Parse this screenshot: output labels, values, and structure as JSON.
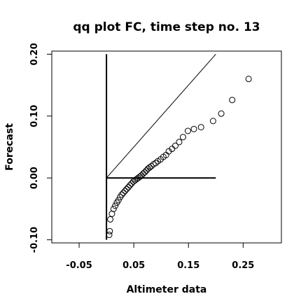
{
  "chart_data": {
    "type": "scatter",
    "title": "qq plot FC, time step no. 13",
    "xlabel": "Altimeter data",
    "ylabel": "Forecast",
    "xlim": [
      -0.1,
      0.32
    ],
    "ylim": [
      -0.105,
      0.205
    ],
    "x_ticks": [
      {
        "value": -0.05,
        "label": "-0.05"
      },
      {
        "value": 0.05,
        "label": "0.05"
      },
      {
        "value": 0.15,
        "label": "0.15"
      },
      {
        "value": 0.25,
        "label": "0.25"
      }
    ],
    "y_ticks": [
      {
        "value": -0.1,
        "label": "-0.10"
      },
      {
        "value": 0.0,
        "label": "0.00"
      },
      {
        "value": 0.1,
        "label": "0.10"
      },
      {
        "value": 0.2,
        "label": "0.20"
      }
    ],
    "reference_lines": [
      {
        "name": "identity-line",
        "x": [
          0,
          0.2
        ],
        "y": [
          0,
          0.2
        ]
      },
      {
        "name": "vertical-axis-line",
        "x": [
          0,
          0
        ],
        "y": [
          -0.1,
          0.2
        ]
      },
      {
        "name": "horizontal-axis-line",
        "x": [
          0,
          0.2
        ],
        "y": [
          0,
          0
        ]
      }
    ],
    "grid": false,
    "points": {
      "x": [
        0.005,
        0.006,
        0.007,
        0.01,
        0.013,
        0.016,
        0.019,
        0.022,
        0.025,
        0.028,
        0.031,
        0.034,
        0.037,
        0.04,
        0.043,
        0.046,
        0.049,
        0.052,
        0.055,
        0.058,
        0.061,
        0.064,
        0.067,
        0.07,
        0.073,
        0.076,
        0.079,
        0.082,
        0.086,
        0.09,
        0.094,
        0.099,
        0.104,
        0.109,
        0.114,
        0.12,
        0.126,
        0.133,
        0.14,
        0.149,
        0.16,
        0.173,
        0.195,
        0.21,
        0.23,
        0.26
      ],
      "y": [
        -0.092,
        -0.086,
        -0.067,
        -0.058,
        -0.05,
        -0.045,
        -0.04,
        -0.036,
        -0.031,
        -0.027,
        -0.024,
        -0.021,
        -0.018,
        -0.015,
        -0.012,
        -0.009,
        -0.006,
        -0.004,
        -0.002,
        0.0,
        0.002,
        0.004,
        0.007,
        0.009,
        0.012,
        0.015,
        0.017,
        0.019,
        0.022,
        0.024,
        0.027,
        0.03,
        0.034,
        0.037,
        0.043,
        0.047,
        0.052,
        0.058,
        0.066,
        0.076,
        0.079,
        0.082,
        0.092,
        0.104,
        0.126,
        0.16
      ]
    }
  }
}
